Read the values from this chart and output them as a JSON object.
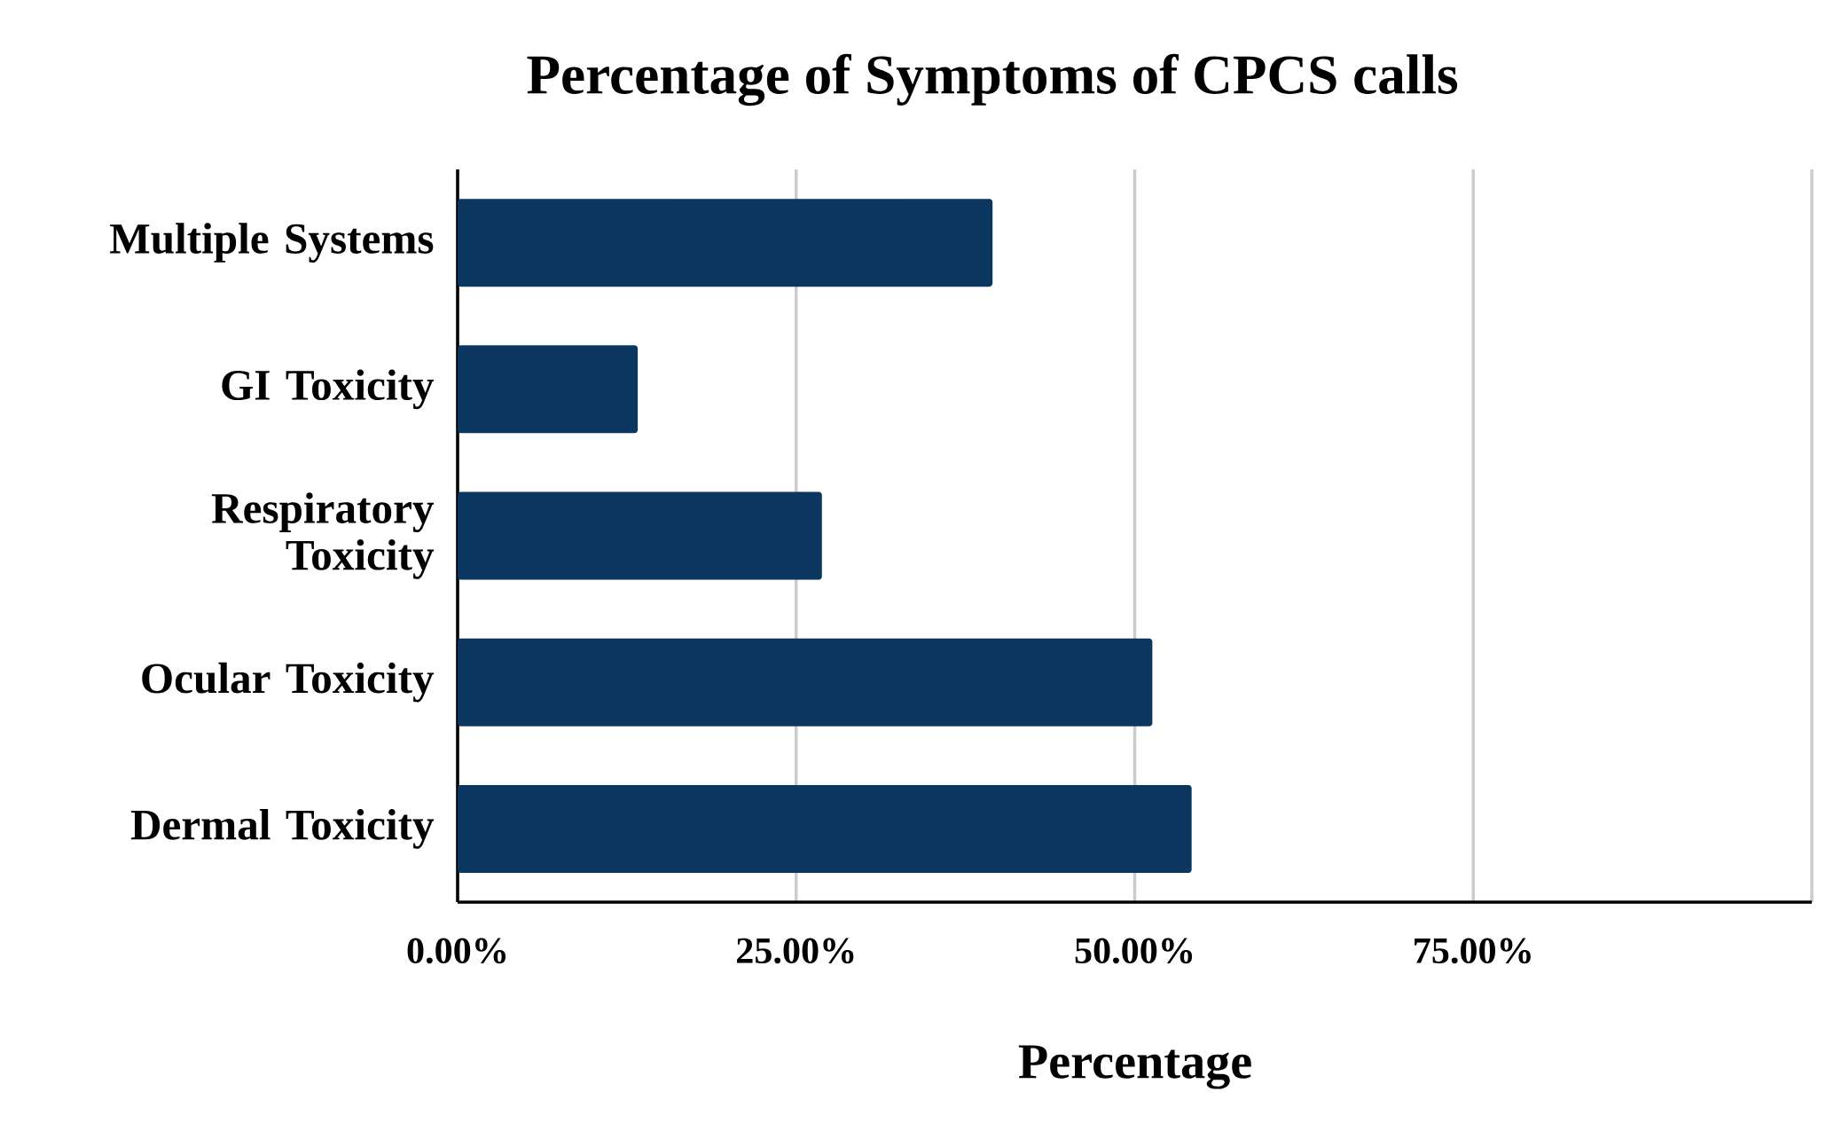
{
  "chart_data": {
    "type": "bar",
    "orientation": "horizontal",
    "title": "Percentage of Symptoms of CPCS calls",
    "xlabel": "Percentage",
    "categories": [
      "Multiple Systems",
      "GI Toxicity",
      "Respiratory Toxicity",
      "Ocular Toxicity",
      "Dermal Toxicity"
    ],
    "values": [
      39.5,
      13.3,
      26.9,
      51.3,
      54.2
    ],
    "color": "#0a365f",
    "xlim": [
      0,
      100
    ],
    "xticks": [
      {
        "value": 0,
        "label": "0.00%"
      },
      {
        "value": 25,
        "label": "25.00%"
      },
      {
        "value": 50,
        "label": "50.00%"
      },
      {
        "value": 75,
        "label": "75.00%"
      },
      {
        "value": 100,
        "label": null
      }
    ],
    "grid": "x"
  }
}
